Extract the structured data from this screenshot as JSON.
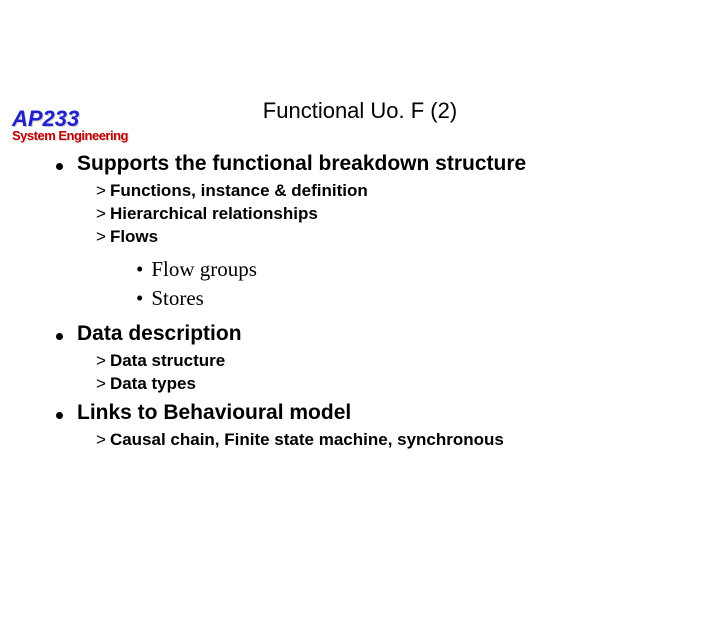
{
  "logo": {
    "top": "AP233",
    "bottom": "System Engineering"
  },
  "title": "Functional Uo. F (2)",
  "sections": [
    {
      "heading": "Supports the functional breakdown structure",
      "subs": [
        "Functions, instance & definition",
        "Hierarchical relationships",
        "Flows"
      ],
      "subs2": [
        "Flow groups",
        "Stores"
      ]
    },
    {
      "heading": "Data description",
      "subs": [
        "Data structure",
        "Data types"
      ],
      "subs2": []
    },
    {
      "heading": "Links to Behavioural model",
      "subs": [
        "Causal chain, Finite state machine, synchronous"
      ],
      "subs2": []
    }
  ],
  "style": {
    "background": "#ffffff",
    "text_color": "#000000",
    "logo_top_color": "#2020d0",
    "logo_bottom_color": "#c00000",
    "title_fontsize": 22,
    "heading_fontsize": 21,
    "sub_fontsize": 17,
    "sub2_fontsize": 21,
    "sub2_font": "Times New Roman"
  }
}
